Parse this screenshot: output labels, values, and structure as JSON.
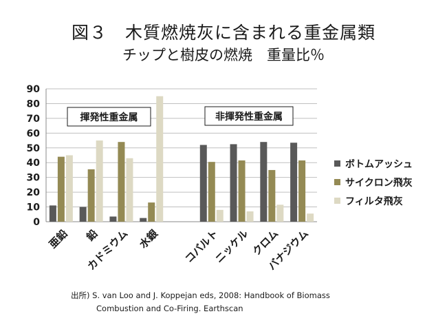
{
  "title": "図３　木質燃焼灰に含まれる重金属類",
  "subtitle": "チップと樹皮の燃焼　重量比％",
  "colors": {
    "bottom_ash": "#595959",
    "cyclone_ash": "#948a54",
    "filter_ash": "#ddd9c3"
  },
  "chart_data": {
    "type": "bar",
    "categories": [
      "亜鉛",
      "鉛",
      "カドミウム",
      "水銀",
      "",
      "コバルト",
      "ニッケル",
      "クロム",
      "バナジウム"
    ],
    "series": [
      {
        "name": "ボトムアッシュ",
        "values": [
          11,
          10,
          3.5,
          2.5,
          null,
          52,
          52.5,
          54,
          53.5
        ]
      },
      {
        "name": "サイクロン飛灰",
        "values": [
          44,
          35.5,
          54,
          13,
          null,
          40.5,
          41.5,
          35,
          41.5
        ]
      },
      {
        "name": "フィルタ飛灰",
        "values": [
          45,
          55,
          43,
          85,
          null,
          8,
          7,
          11.5,
          5.5
        ]
      }
    ],
    "ylim": [
      0,
      90
    ],
    "yticks": [
      0,
      10,
      20,
      30,
      40,
      50,
      60,
      70,
      80,
      90
    ],
    "grid": true,
    "legend": "right",
    "annotations": [
      "揮発性重金属",
      "非揮発性重金属"
    ]
  },
  "source": {
    "line1": "出所) S. van Loo and J. Koppejan eds, 2008: Handbook of Biomass",
    "line2": "Combustion  and Co-Firing.  Earthscan"
  }
}
